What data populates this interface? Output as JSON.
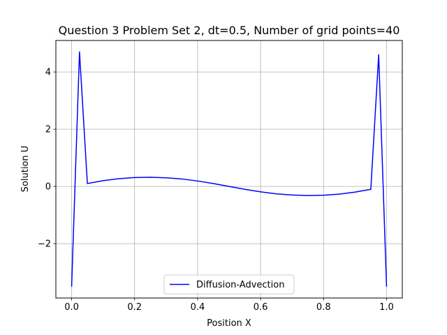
{
  "chart_data": {
    "type": "line",
    "title": "Question 3 Problem Set 2, dt=0.5, Number of grid points=40",
    "xlabel": "Position X",
    "ylabel": "Solution U",
    "xlim": [
      -0.05,
      1.05
    ],
    "ylim": [
      -3.9,
      5.1
    ],
    "xticks": [
      0.0,
      0.2,
      0.4,
      0.6,
      0.8,
      1.0
    ],
    "xtick_labels": [
      "0.0",
      "0.2",
      "0.4",
      "0.6",
      "0.8",
      "1.0"
    ],
    "yticks": [
      -2,
      0,
      2,
      4
    ],
    "ytick_labels": [
      "−2",
      "0",
      "2",
      "4"
    ],
    "grid": true,
    "legend": {
      "placement": "lower center"
    },
    "series": [
      {
        "name": "Diffusion-Advection",
        "color": "#0000ff",
        "x": [
          0.0,
          0.025,
          0.05,
          0.1,
          0.15,
          0.2,
          0.25,
          0.3,
          0.35,
          0.4,
          0.45,
          0.5,
          0.55,
          0.6,
          0.65,
          0.7,
          0.75,
          0.8,
          0.85,
          0.9,
          0.95,
          0.975,
          1.0
        ],
        "y": [
          -3.5,
          4.7,
          0.1,
          0.2,
          0.27,
          0.31,
          0.32,
          0.3,
          0.26,
          0.19,
          0.1,
          0.0,
          -0.1,
          -0.19,
          -0.26,
          -0.3,
          -0.32,
          -0.31,
          -0.27,
          -0.2,
          -0.1,
          4.6,
          -3.5
        ]
      }
    ]
  }
}
